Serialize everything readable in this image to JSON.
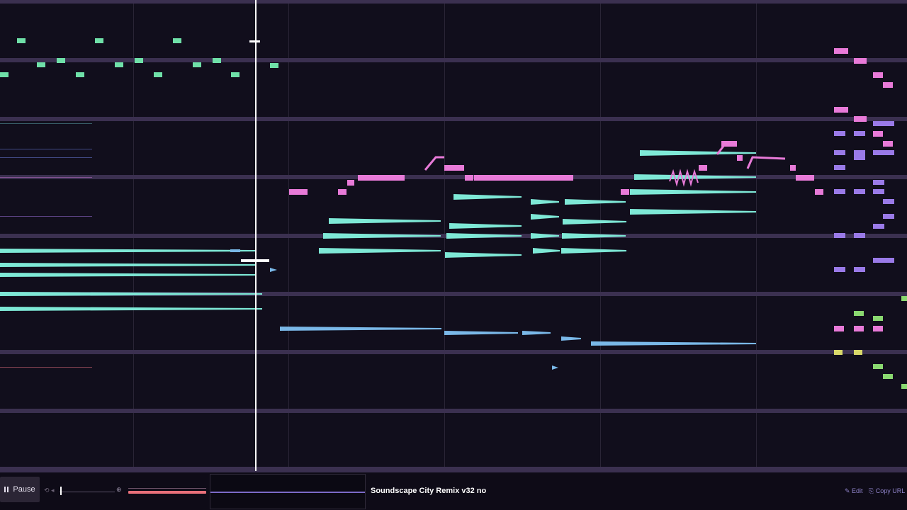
{
  "player": {
    "pause_label": "Pause",
    "song_title": "Soundscape City Remix v32 no",
    "edit_label": "Edit",
    "copy_url_label": "Copy URL"
  },
  "icons": {
    "pause": "pause-icon",
    "loop": "loop-icon",
    "volume": "volume-icon",
    "zoom": "zoom-icon",
    "edit": "pencil-icon",
    "copy": "link-icon"
  },
  "colors": {
    "background": "#110e1c",
    "channel_divider": "#3b3050",
    "playhead": "#ffffff",
    "seek_bar": "#e8707a",
    "timeline_line": "#7c6ac8",
    "note_green": "#6fe0a8",
    "note_cyan": "#7ee8d6",
    "note_pink": "#e87ad8",
    "note_blue": "#7ab8e8",
    "note_purple": "#9a7ae8",
    "note_yellow": "#d8d86a",
    "note_lime": "#8ad870",
    "link": "#8f83c9"
  }
}
